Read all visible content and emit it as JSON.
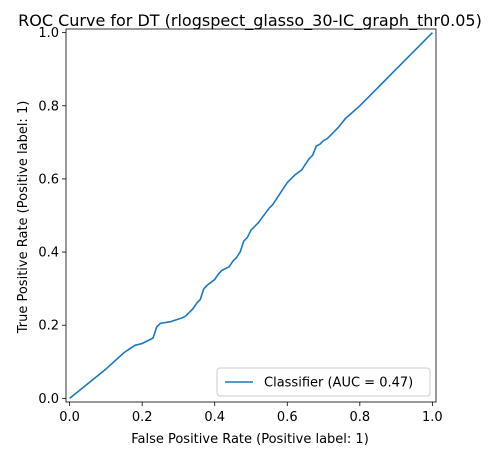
{
  "chart_data": {
    "type": "line",
    "title": "ROC Curve for DT (rlogspect_glasso_30-IC_graph_thr0.05)",
    "xlabel": "False Positive Rate (Positive label: 1)",
    "ylabel": "True Positive Rate (Positive label: 1)",
    "xlim": [
      -0.01,
      1.01
    ],
    "ylim": [
      -0.01,
      1.01
    ],
    "xticks": [
      0.0,
      0.2,
      0.4,
      0.6,
      0.8,
      1.0
    ],
    "yticks": [
      0.0,
      0.2,
      0.4,
      0.6,
      0.8,
      1.0
    ],
    "xtick_labels": [
      "0.0",
      "0.2",
      "0.4",
      "0.6",
      "0.8",
      "1.0"
    ],
    "ytick_labels": [
      "0.0",
      "0.2",
      "0.4",
      "0.6",
      "0.8",
      "1.0"
    ],
    "grid": false,
    "legend_position": "lower-right",
    "series": [
      {
        "name": "Classifier (AUC = 0.47)",
        "color": "#1f77b4",
        "x": [
          0.0,
          0.05,
          0.1,
          0.15,
          0.18,
          0.2,
          0.23,
          0.24,
          0.25,
          0.28,
          0.31,
          0.32,
          0.34,
          0.35,
          0.36,
          0.37,
          0.38,
          0.4,
          0.41,
          0.42,
          0.44,
          0.45,
          0.46,
          0.47,
          0.48,
          0.49,
          0.5,
          0.52,
          0.55,
          0.56,
          0.58,
          0.59,
          0.6,
          0.62,
          0.64,
          0.65,
          0.66,
          0.67,
          0.68,
          0.69,
          0.7,
          0.71,
          0.72,
          0.74,
          0.76,
          0.8,
          0.85,
          0.9,
          0.95,
          1.0
        ],
        "y": [
          0.0,
          0.04,
          0.08,
          0.125,
          0.145,
          0.15,
          0.165,
          0.195,
          0.205,
          0.21,
          0.22,
          0.225,
          0.245,
          0.26,
          0.27,
          0.3,
          0.31,
          0.325,
          0.34,
          0.35,
          0.36,
          0.375,
          0.385,
          0.4,
          0.43,
          0.44,
          0.46,
          0.48,
          0.52,
          0.53,
          0.56,
          0.575,
          0.59,
          0.61,
          0.625,
          0.64,
          0.655,
          0.665,
          0.69,
          0.695,
          0.705,
          0.71,
          0.72,
          0.74,
          0.765,
          0.8,
          0.85,
          0.9,
          0.95,
          1.0
        ]
      }
    ]
  }
}
